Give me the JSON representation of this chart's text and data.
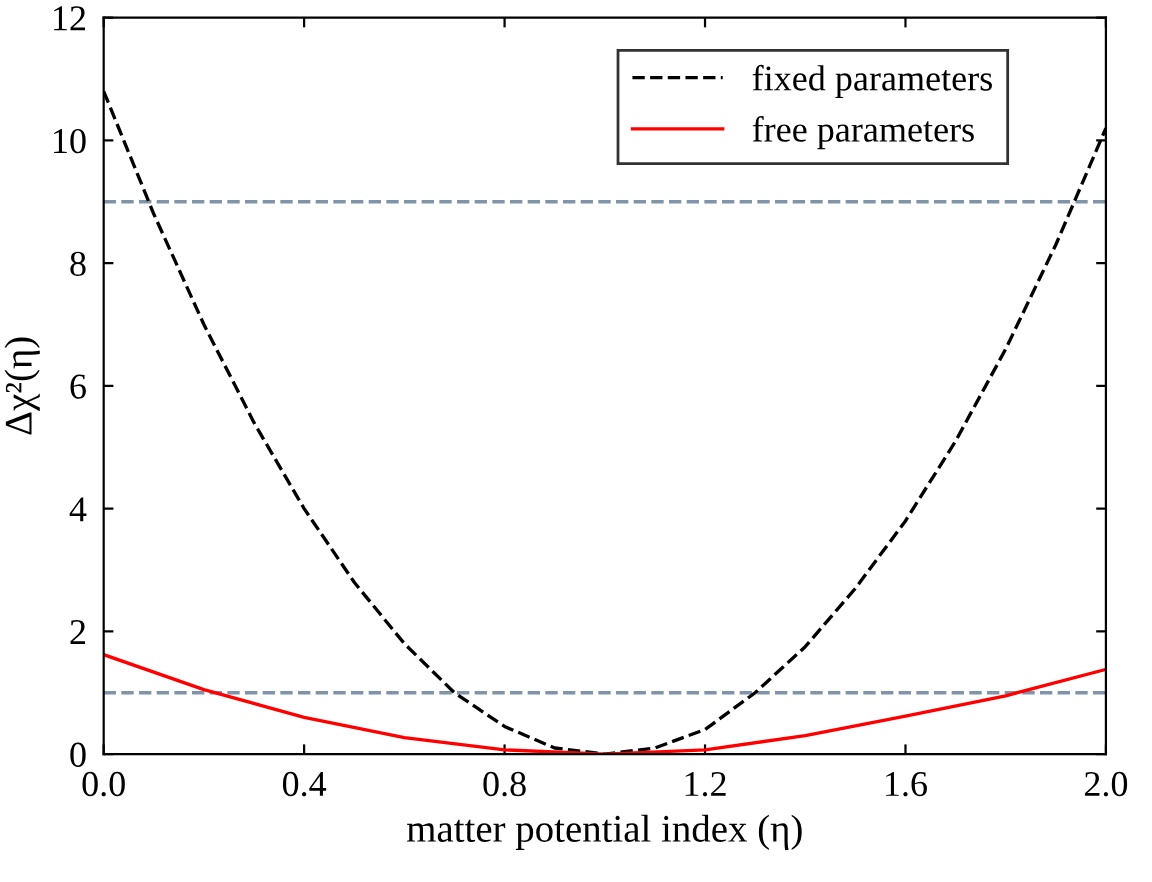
{
  "chart_data": {
    "type": "line",
    "xlabel": "matter potential index (η)",
    "ylabel": "Δχ²(η)",
    "x": [
      0,
      0.1,
      0.2,
      0.3,
      0.4,
      0.5,
      0.6,
      0.7,
      0.8,
      0.9,
      1.0,
      1.1,
      1.2,
      1.3,
      1.4,
      1.5,
      1.6,
      1.7,
      1.8,
      1.9,
      2.0
    ],
    "series": [
      {
        "name": "fixed parameters",
        "color": "#000000",
        "line_style": "dashed",
        "values": [
          10.8,
          8.8,
          7.0,
          5.4,
          4.0,
          2.8,
          1.8,
          1.0,
          0.45,
          0.1,
          0,
          0.1,
          0.4,
          1.0,
          1.75,
          2.7,
          3.8,
          5.1,
          6.6,
          8.3,
          10.2
        ]
      },
      {
        "name": "free parameters",
        "color": "#ff0000",
        "line_style": "solid",
        "x": [
          0,
          0.2,
          0.4,
          0.6,
          0.8,
          1.0,
          1.2,
          1.4,
          1.6,
          1.8,
          2.0
        ],
        "values": [
          1.62,
          1.05,
          0.6,
          0.27,
          0.07,
          0,
          0.07,
          0.3,
          0.62,
          0.95,
          1.38
        ]
      }
    ],
    "ref_lines": [
      {
        "axis": "y",
        "value": 9,
        "color": "#7f94a8",
        "line_style": "dashed"
      },
      {
        "axis": "y",
        "value": 1,
        "color": "#7f94a8",
        "line_style": "dashed"
      }
    ],
    "xlim": [
      0,
      2.0
    ],
    "ylim": [
      0,
      12
    ],
    "xticks": [
      {
        "value": 0,
        "label": "0.0"
      },
      0.4,
      0.8,
      1.2,
      1.6,
      {
        "value": 2.0,
        "label": "2.0"
      }
    ],
    "yticks": [
      0,
      2,
      4,
      6,
      8,
      10,
      12
    ],
    "grid": false,
    "legend": "top right",
    "marker": "none"
  }
}
